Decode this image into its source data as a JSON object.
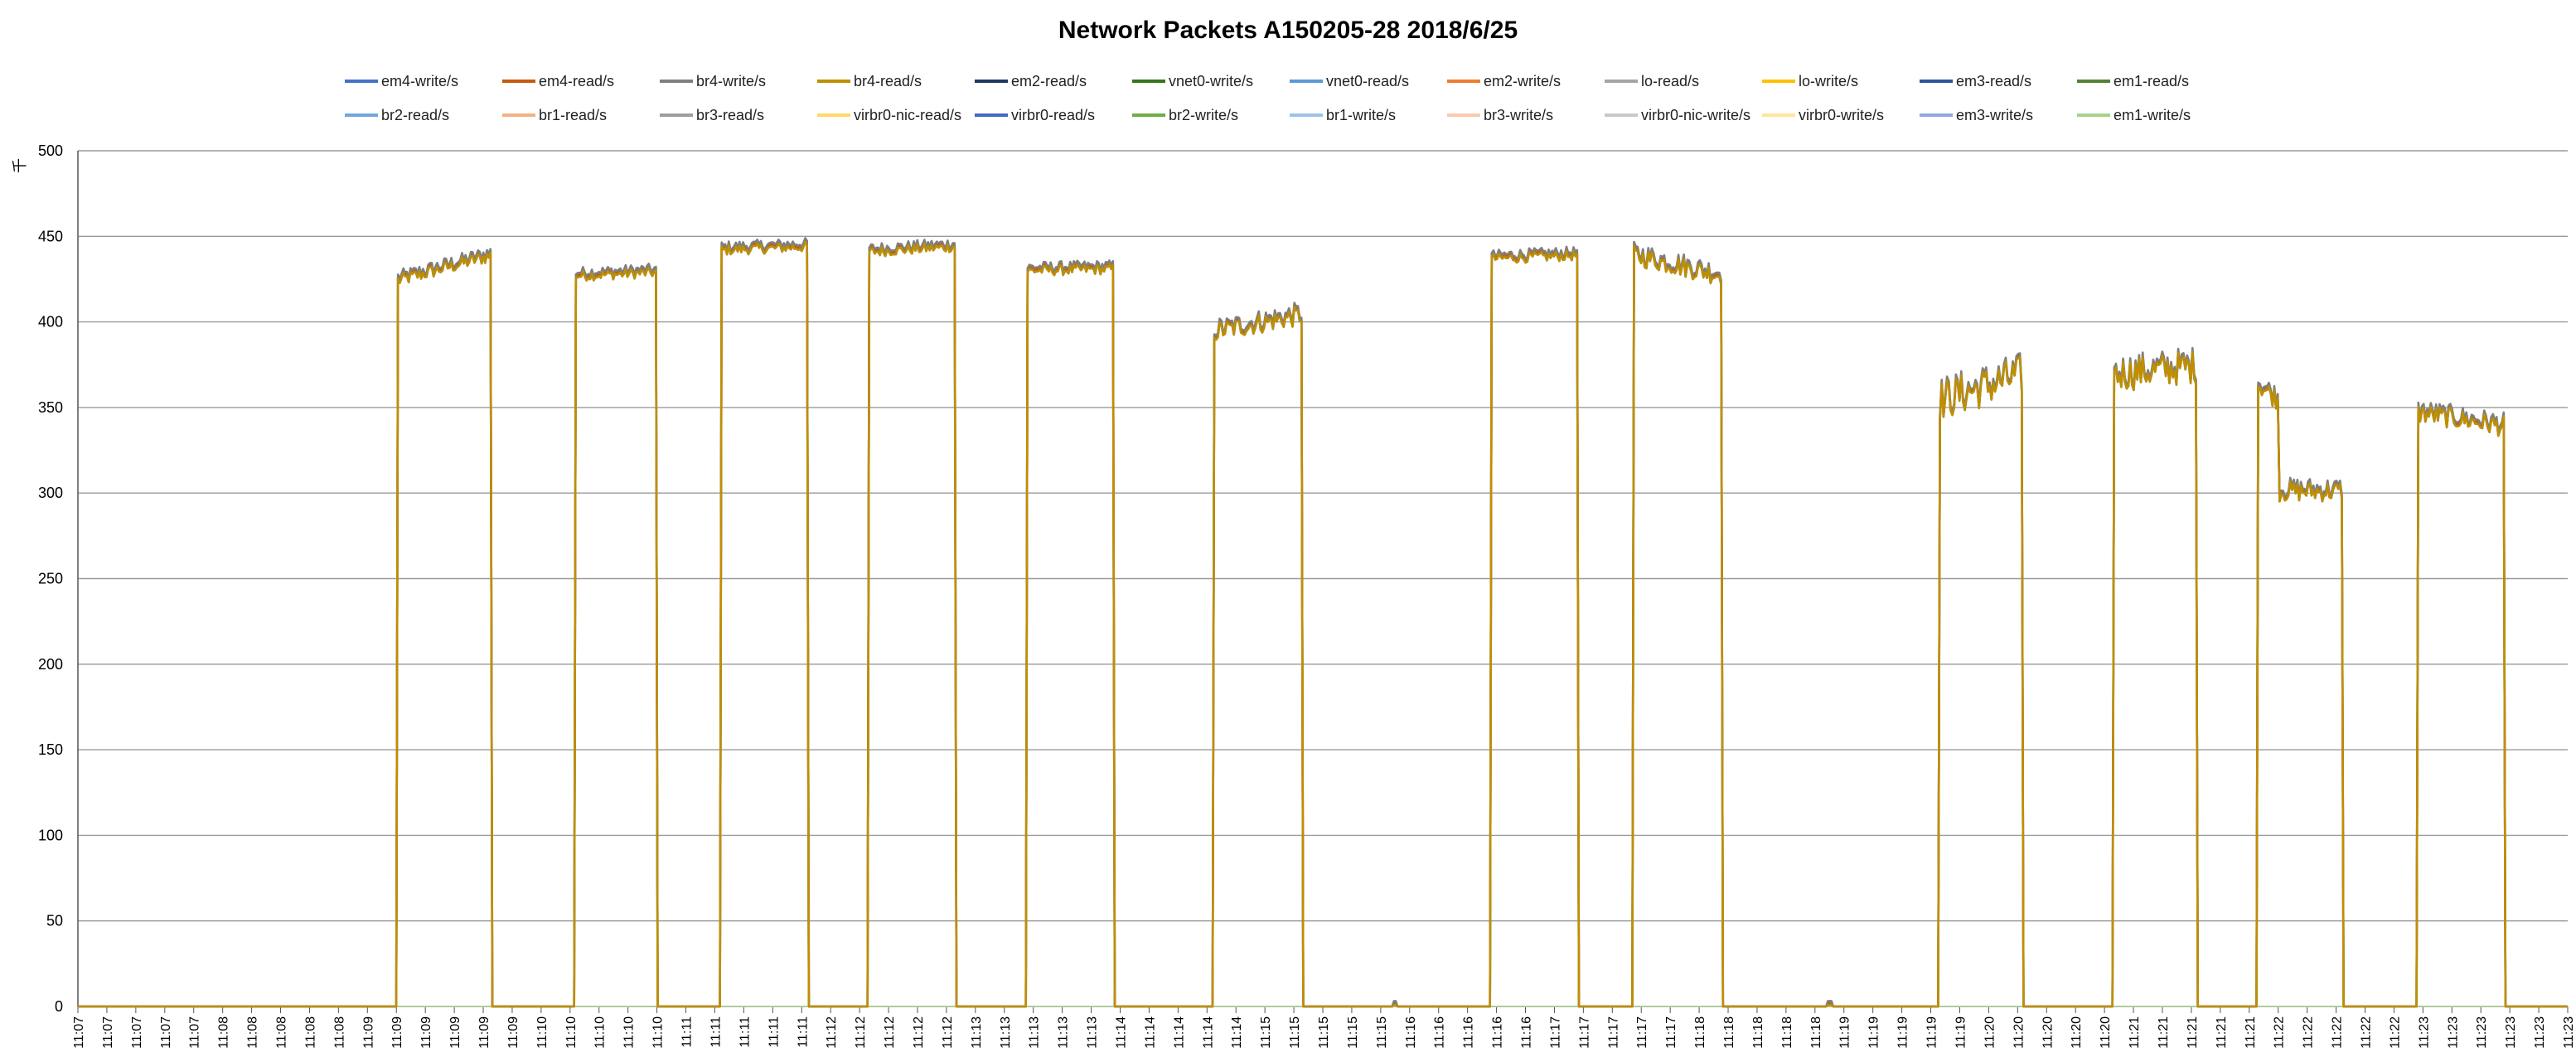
{
  "chart_data": {
    "type": "line",
    "title": "Network Packets A150205-28  2018/6/25",
    "ylabel": "千",
    "ylim": [
      0,
      500
    ],
    "yticks": [
      0,
      50,
      100,
      150,
      200,
      250,
      300,
      350,
      400,
      450,
      500
    ],
    "grid": true,
    "legend_position": "top",
    "x_tick_labels": [
      "11:07",
      "11:07",
      "11:07",
      "11:07",
      "11:07",
      "11:08",
      "11:08",
      "11:08",
      "11:08",
      "11:08",
      "11:09",
      "11:09",
      "11:09",
      "11:09",
      "11:09",
      "11:09",
      "11:10",
      "11:10",
      "11:10",
      "11:10",
      "11:10",
      "11:11",
      "11:11",
      "11:11",
      "11:11",
      "11:11",
      "11:12",
      "11:12",
      "11:12",
      "11:12",
      "11:12",
      "11:13",
      "11:13",
      "11:13",
      "11:13",
      "11:13",
      "11:14",
      "11:14",
      "11:14",
      "11:14",
      "11:14",
      "11:15",
      "11:15",
      "11:15",
      "11:15",
      "11:15",
      "11:16",
      "11:16",
      "11:16",
      "11:16",
      "11:16",
      "11:17",
      "11:17",
      "11:17",
      "11:17",
      "11:17",
      "11:18",
      "11:18",
      "11:18",
      "11:18",
      "11:18",
      "11:19",
      "11:19",
      "11:19",
      "11:19",
      "11:19",
      "11:20",
      "11:20",
      "11:20",
      "11:20",
      "11:20",
      "11:21",
      "11:21",
      "11:21",
      "11:21",
      "11:21",
      "11:22",
      "11:22",
      "11:22",
      "11:22",
      "11:22",
      "11:23",
      "11:23",
      "11:23",
      "11:23",
      "11:23",
      "11:23"
    ],
    "series_legend": [
      {
        "name": "em4-write/s",
        "color": "#4472C4"
      },
      {
        "name": "em4-read/s",
        "color": "#C55A11"
      },
      {
        "name": "br4-write/s",
        "color": "#7F7F7F"
      },
      {
        "name": "br4-read/s",
        "color": "#BF8F00"
      },
      {
        "name": "em2-read/s",
        "color": "#203864"
      },
      {
        "name": "vnet0-write/s",
        "color": "#38761D"
      },
      {
        "name": "vnet0-read/s",
        "color": "#5B9BD5"
      },
      {
        "name": "em2-write/s",
        "color": "#ED7D31"
      },
      {
        "name": "lo-read/s",
        "color": "#A5A5A5"
      },
      {
        "name": "lo-write/s",
        "color": "#FFC000"
      },
      {
        "name": "em3-read/s",
        "color": "#2F5597"
      },
      {
        "name": "em1-read/s",
        "color": "#548235"
      },
      {
        "name": "br2-read/s",
        "color": "#6FA8DC"
      },
      {
        "name": "br1-read/s",
        "color": "#F4B183"
      },
      {
        "name": "br3-read/s",
        "color": "#9E9E9E"
      },
      {
        "name": "virbr0-nic-read/s",
        "color": "#FFD966"
      },
      {
        "name": "virbr0-read/s",
        "color": "#4169C8"
      },
      {
        "name": "br2-write/s",
        "color": "#70AD47"
      },
      {
        "name": "br1-write/s",
        "color": "#9DC3E6"
      },
      {
        "name": "br3-write/s",
        "color": "#F8CBAD"
      },
      {
        "name": "virbr0-nic-write/s",
        "color": "#C9C9C9"
      },
      {
        "name": "virbr0-write/s",
        "color": "#FFE699"
      },
      {
        "name": "em3-write/s",
        "color": "#8FAADC"
      },
      {
        "name": "em1-write/s",
        "color": "#A9D18E"
      }
    ],
    "bursts": [
      {
        "start_tick": 11.0,
        "end_tick": 14.3,
        "start_value": 425,
        "end_value": 440,
        "jitter": 4
      },
      {
        "start_tick": 17.2,
        "end_tick": 20.0,
        "start_value": 428,
        "end_value": 430,
        "jitter": 3
      },
      {
        "start_tick": 22.2,
        "end_tick": 25.2,
        "start_value": 443,
        "end_value": 445,
        "jitter": 3
      },
      {
        "start_tick": 27.3,
        "end_tick": 30.3,
        "start_value": 442,
        "end_value": 445,
        "jitter": 3
      },
      {
        "start_tick": 32.8,
        "end_tick": 35.8,
        "start_value": 431,
        "end_value": 432,
        "jitter": 3
      },
      {
        "start_tick": 39.2,
        "end_tick": 42.3,
        "start_value": 395,
        "end_value": 405,
        "jitter": 6
      },
      {
        "start_tick": 48.8,
        "end_tick": 51.8,
        "start_value": 438,
        "end_value": 440,
        "jitter": 3
      },
      {
        "start_tick": 53.7,
        "end_tick": 56.8,
        "start_value": 440,
        "end_value": 428,
        "jitter": 6
      },
      {
        "start_tick": 64.3,
        "end_tick": 67.2,
        "start_value": 355,
        "end_value": 370,
        "jitter": 12
      },
      {
        "start_tick": 70.3,
        "end_tick": 73.2,
        "start_value": 370,
        "end_value": 375,
        "jitter": 10
      },
      {
        "start_tick": 75.3,
        "end_tick": 78.2,
        "start_value": 365,
        "end_value": 302,
        "jitter": 6,
        "drop_at": 0.25
      },
      {
        "start_tick": 80.8,
        "end_tick": 83.8,
        "start_value": 348,
        "end_value": 340,
        "jitter": 6
      }
    ],
    "small_blips": [
      {
        "tick": 45.5,
        "value": 2
      },
      {
        "tick": 60.5,
        "value": 2
      },
      {
        "tick": 86.3,
        "value": 2
      }
    ]
  }
}
